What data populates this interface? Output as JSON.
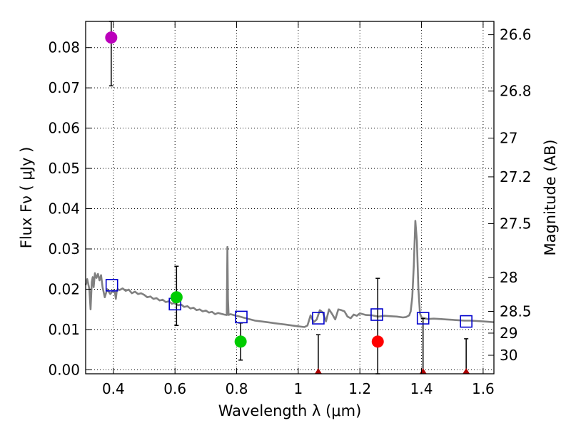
{
  "chart_data": {
    "type": "scatter",
    "title": "",
    "xlabel": "Wavelength  λ (μm)",
    "ylabel": "Flux  Fν  ( μJy )",
    "y2label": "Magnitude (AB)",
    "xlim": [
      0.31,
      1.635
    ],
    "ylim": [
      -0.001,
      0.0865
    ],
    "xticks": [
      0.4,
      0.6,
      0.8,
      1.0,
      1.2,
      1.4,
      1.6
    ],
    "xtick_labels": [
      "0.4",
      "0.6",
      "0.8",
      "1",
      "1.2",
      "1.4",
      "1.6"
    ],
    "yticks": [
      0.0,
      0.01,
      0.02,
      0.03,
      0.04,
      0.05,
      0.06,
      0.07,
      0.08
    ],
    "ytick_labels": [
      "0.00",
      "0.01",
      "0.02",
      "0.03",
      "0.04",
      "0.05",
      "0.06",
      "0.07",
      "0.08"
    ],
    "y2ticks": [
      {
        "label": "26.6",
        "flux": 0.0832
      },
      {
        "label": "26.8",
        "flux": 0.0692
      },
      {
        "label": "27",
        "flux": 0.0575
      },
      {
        "label": "27.2",
        "flux": 0.0479
      },
      {
        "label": "27.5",
        "flux": 0.0363
      },
      {
        "label": "28",
        "flux": 0.0229
      },
      {
        "label": "28.5",
        "flux": 0.0145
      },
      {
        "label": "29",
        "flux": 0.0091
      },
      {
        "label": "30",
        "flux": 0.0036
      }
    ],
    "grid": true,
    "colors": {
      "model": "#808080",
      "model_flux_marker": "#0000cc",
      "error_bar": "#000000",
      "purple": "#bb00bb",
      "green": "#00cc00",
      "red": "#ff0000",
      "upper_limit": "#aa0000"
    },
    "series": [
      {
        "name": "best-fit template spectrum",
        "kind": "line",
        "x": [
          0.31,
          0.315,
          0.322,
          0.326,
          0.33,
          0.333,
          0.336,
          0.34,
          0.345,
          0.35,
          0.355,
          0.36,
          0.365,
          0.372,
          0.38,
          0.39,
          0.4,
          0.405,
          0.408,
          0.411,
          0.414,
          0.42,
          0.43,
          0.44,
          0.45,
          0.46,
          0.47,
          0.48,
          0.49,
          0.5,
          0.51,
          0.52,
          0.53,
          0.54,
          0.55,
          0.56,
          0.57,
          0.58,
          0.59,
          0.6,
          0.61,
          0.62,
          0.63,
          0.64,
          0.65,
          0.66,
          0.67,
          0.68,
          0.69,
          0.7,
          0.71,
          0.72,
          0.73,
          0.74,
          0.75,
          0.76,
          0.768,
          0.77,
          0.772,
          0.774,
          0.78,
          0.79,
          0.8,
          0.81,
          0.82,
          0.84,
          0.86,
          0.88,
          0.9,
          0.92,
          0.94,
          0.96,
          0.98,
          1.0,
          1.02,
          1.03,
          1.04,
          1.05,
          1.06,
          1.07,
          1.08,
          1.09,
          1.1,
          1.11,
          1.12,
          1.13,
          1.14,
          1.15,
          1.16,
          1.17,
          1.18,
          1.19,
          1.2,
          1.22,
          1.24,
          1.26,
          1.28,
          1.3,
          1.32,
          1.34,
          1.35,
          1.36,
          1.365,
          1.37,
          1.375,
          1.38,
          1.385,
          1.39,
          1.395,
          1.4,
          1.41,
          1.42,
          1.44,
          1.46,
          1.48,
          1.5,
          1.52,
          1.54,
          1.56,
          1.58,
          1.6,
          1.62,
          1.635
        ],
        "y": [
          0.021,
          0.0225,
          0.02,
          0.015,
          0.0218,
          0.023,
          0.0205,
          0.024,
          0.0228,
          0.0238,
          0.0222,
          0.0235,
          0.0205,
          0.018,
          0.02,
          0.0188,
          0.0198,
          0.0192,
          0.0176,
          0.0196,
          0.02,
          0.0198,
          0.0202,
          0.0196,
          0.0199,
          0.019,
          0.0194,
          0.0188,
          0.019,
          0.0186,
          0.018,
          0.0182,
          0.0176,
          0.0178,
          0.0172,
          0.0174,
          0.0168,
          0.017,
          0.0164,
          0.0166,
          0.016,
          0.0162,
          0.0156,
          0.0158,
          0.0152,
          0.0154,
          0.0148,
          0.015,
          0.0145,
          0.0147,
          0.0142,
          0.0144,
          0.0138,
          0.0141,
          0.0139,
          0.0137,
          0.0136,
          0.0305,
          0.0175,
          0.0136,
          0.0138,
          0.0136,
          0.0134,
          0.0132,
          0.013,
          0.0126,
          0.0122,
          0.012,
          0.0118,
          0.0116,
          0.0114,
          0.0112,
          0.011,
          0.0108,
          0.0106,
          0.011,
          0.0135,
          0.0118,
          0.0125,
          0.0148,
          0.0142,
          0.012,
          0.015,
          0.0138,
          0.0125,
          0.015,
          0.0148,
          0.0145,
          0.0132,
          0.0128,
          0.0137,
          0.0134,
          0.014,
          0.0136,
          0.0135,
          0.0132,
          0.0134,
          0.0133,
          0.0132,
          0.013,
          0.0131,
          0.0135,
          0.0145,
          0.018,
          0.026,
          0.037,
          0.032,
          0.02,
          0.014,
          0.013,
          0.0128,
          0.0126,
          0.0127,
          0.0126,
          0.0125,
          0.0124,
          0.0123,
          0.0122,
          0.0122,
          0.0121,
          0.012,
          0.0119,
          0.0118
        ]
      },
      {
        "name": "model broadband flux",
        "kind": "open-square",
        "x": [
          0.395,
          0.6,
          0.815,
          1.065,
          1.255,
          1.405,
          1.545
        ],
        "y": [
          0.021,
          0.0163,
          0.0131,
          0.0128,
          0.0137,
          0.0128,
          0.012
        ]
      },
      {
        "name": "observed photometry",
        "kind": "filled-circle",
        "points": [
          {
            "x": 0.393,
            "y": 0.0825,
            "err_low": 0.0705,
            "err_high": 0.0865,
            "color": "#bb00bb"
          },
          {
            "x": 0.605,
            "y": 0.018,
            "err_low": 0.011,
            "err_high": 0.0257,
            "color": "#00cc00"
          },
          {
            "x": 0.813,
            "y": 0.007,
            "err_low": 0.0024,
            "err_high": 0.0116,
            "color": "#00cc00"
          },
          {
            "x": 1.258,
            "y": 0.007,
            "err_low": -0.001,
            "err_high": 0.0227,
            "color": "#ff0000"
          }
        ]
      },
      {
        "name": "non-detection (upper limit)",
        "kind": "upper-limit",
        "points": [
          {
            "x": 1.065,
            "y": 0.0,
            "err_high": 0.0087
          },
          {
            "x": 1.405,
            "y": 0.0,
            "err_high": 0.0127
          },
          {
            "x": 1.545,
            "y": 0.0,
            "err_high": 0.0077
          }
        ]
      }
    ]
  }
}
